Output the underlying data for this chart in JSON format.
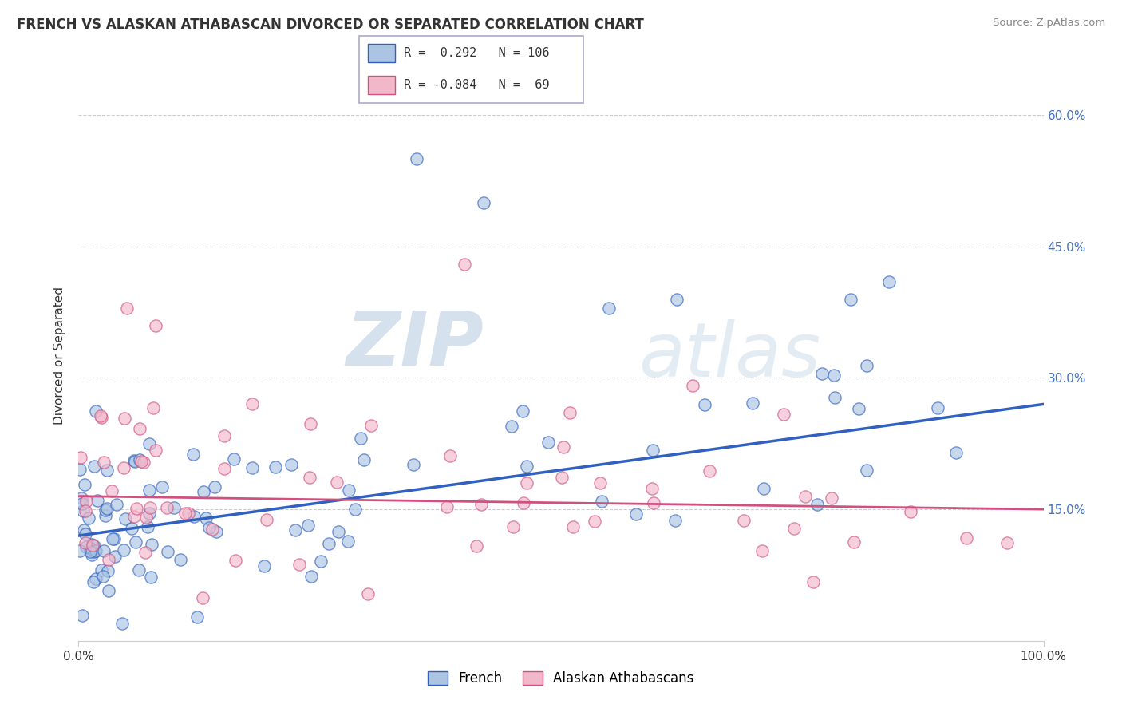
{
  "title": "FRENCH VS ALASKAN ATHABASCAN DIVORCED OR SEPARATED CORRELATION CHART",
  "source": "Source: ZipAtlas.com",
  "ylabel": "Divorced or Separated",
  "xlim": [
    0,
    100
  ],
  "ylim": [
    0,
    65
  ],
  "yticks": [
    15,
    30,
    45,
    60
  ],
  "ytick_labels": [
    "15.0%",
    "30.0%",
    "45.0%",
    "60.0%"
  ],
  "xtick_labels": [
    "0.0%",
    "100.0%"
  ],
  "french_R": 0.292,
  "french_N": 106,
  "alaskan_R": -0.084,
  "alaskan_N": 69,
  "french_color": "#aac4e2",
  "alaskan_color": "#f2b8ca",
  "french_line_color": "#3060c0",
  "alaskan_line_color": "#d05080",
  "legend_french_label": "French",
  "legend_alaskan_label": "Alaskan Athabascans",
  "watermark_zip": "ZIP",
  "watermark_atlas": "atlas",
  "background_color": "#ffffff",
  "french_line_y0": 12.0,
  "french_line_y1": 27.0,
  "alaskan_line_y0": 16.5,
  "alaskan_line_y1": 15.0
}
